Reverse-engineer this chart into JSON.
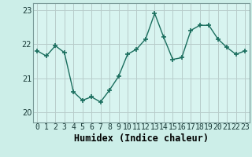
{
  "xlabel": "Humidex (Indice chaleur)",
  "x_values": [
    0,
    1,
    2,
    3,
    4,
    5,
    6,
    7,
    8,
    9,
    10,
    11,
    12,
    13,
    14,
    15,
    16,
    17,
    18,
    19,
    20,
    21,
    22,
    23
  ],
  "y_values": [
    21.8,
    21.65,
    21.95,
    21.75,
    20.6,
    20.35,
    20.45,
    20.3,
    20.65,
    21.05,
    21.7,
    21.85,
    22.15,
    22.9,
    22.2,
    21.55,
    21.6,
    22.4,
    22.55,
    22.55,
    22.15,
    21.9,
    21.7,
    21.8
  ],
  "ylim": [
    19.7,
    23.2
  ],
  "yticks": [
    20,
    21,
    22,
    23
  ],
  "line_color": "#1a6e5e",
  "marker_color": "#1a6e5e",
  "bg_color": "#cceee8",
  "plot_bg_color": "#d8f4f0",
  "grid_color": "#b8ccca",
  "tick_label_fontsize": 7,
  "xlabel_fontsize": 8.5
}
